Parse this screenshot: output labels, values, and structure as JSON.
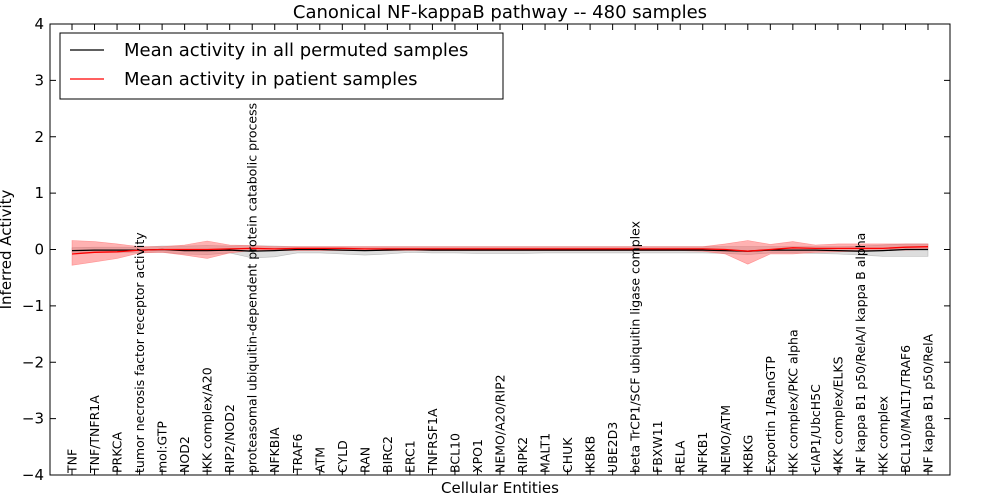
{
  "chart_data": {
    "type": "line",
    "title": "Canonical NF-kappaB pathway -- 480 samples",
    "xlabel": "Cellular Entities",
    "ylabel": "Inferred Activity",
    "ylim": [
      -4,
      4
    ],
    "yticks": [
      4,
      3,
      2,
      1,
      0,
      -1,
      -2,
      -3,
      -4
    ],
    "ytick_labels": [
      "4",
      "3",
      "2",
      "1",
      "0",
      "−1",
      "−2",
      "−3",
      "−4"
    ],
    "legend": {
      "placement": "top-left",
      "entries": [
        {
          "label": "Mean activity in all permuted samples",
          "color": "#000000"
        },
        {
          "label": "Mean activity in patient samples",
          "color": "#ff0000"
        }
      ]
    },
    "categories": [
      "TNF",
      "TNF/TNFR1A",
      "PRKCA",
      "tumor necrosis factor receptor activity",
      "mol:GTP",
      "NOD2",
      "IKK complex/A20",
      "RIP2/NOD2",
      "proteasomal ubiquitin-dependent protein catabolic process",
      "NFKBIA",
      "TRAF6",
      "ATM",
      "CYLD",
      "RAN",
      "BIRC2",
      "ERC1",
      "TNFRSF1A",
      "BCL10",
      "XPO1",
      "NEMO/A20/RIP2",
      "RIPK2",
      "MALT1",
      "CHUK",
      "IKBKB",
      "UBE2D3",
      "beta TrCP1/SCF ubiquitin ligase complex",
      "FBXW11",
      "RELA",
      "NFKB1",
      "NEMO/ATM",
      "IKBKG",
      "Exportin 1/RanGTP",
      "IKK complex/PKC alpha",
      "cIAP1/UbcH5C",
      "4KK complex/ELKS",
      "NF kappa B1 p50/RelA/I kappa B alpha",
      "IKK complex",
      "BCL10/MALT1/TRAF6",
      "NF kappa B1 p50/RelA"
    ],
    "series": [
      {
        "name": "Mean activity in all permuted samples",
        "color": "#000000",
        "values": [
          -0.02,
          -0.01,
          -0.01,
          -0.01,
          0.0,
          -0.02,
          -0.02,
          -0.01,
          -0.03,
          -0.02,
          0.0,
          0.0,
          -0.01,
          -0.02,
          -0.01,
          0.0,
          -0.01,
          -0.01,
          -0.01,
          -0.01,
          -0.01,
          -0.01,
          -0.01,
          -0.01,
          -0.01,
          -0.01,
          -0.01,
          -0.01,
          -0.01,
          -0.02,
          -0.03,
          -0.01,
          -0.01,
          -0.01,
          -0.02,
          -0.03,
          -0.02,
          0.0,
          0.0
        ],
        "band_lower": [
          -0.05,
          -0.05,
          -0.05,
          -0.05,
          -0.05,
          -0.08,
          -0.09,
          -0.06,
          -0.15,
          -0.13,
          -0.06,
          -0.06,
          -0.08,
          -0.1,
          -0.08,
          -0.05,
          -0.06,
          -0.06,
          -0.07,
          -0.07,
          -0.07,
          -0.06,
          -0.06,
          -0.06,
          -0.06,
          -0.06,
          -0.06,
          -0.06,
          -0.06,
          -0.07,
          -0.09,
          -0.06,
          -0.06,
          -0.07,
          -0.08,
          -0.1,
          -0.12,
          -0.12,
          -0.12
        ],
        "band_upper": [
          0.03,
          0.04,
          0.04,
          0.04,
          0.06,
          0.06,
          0.07,
          0.06,
          0.07,
          0.06,
          0.05,
          0.05,
          0.05,
          0.05,
          0.05,
          0.05,
          0.05,
          0.05,
          0.05,
          0.05,
          0.05,
          0.05,
          0.05,
          0.05,
          0.05,
          0.05,
          0.05,
          0.05,
          0.05,
          0.05,
          0.05,
          0.05,
          0.05,
          0.05,
          0.05,
          0.06,
          0.08,
          0.1,
          0.1
        ]
      },
      {
        "name": "Mean activity in patient samples",
        "color": "#ff0000",
        "values": [
          -0.08,
          -0.05,
          -0.04,
          -0.01,
          0.0,
          0.0,
          0.0,
          0.01,
          0.02,
          0.01,
          0.02,
          0.02,
          0.02,
          0.01,
          0.01,
          0.01,
          0.01,
          0.01,
          0.01,
          0.01,
          0.01,
          0.01,
          0.01,
          0.01,
          0.01,
          0.01,
          0.01,
          0.01,
          0.01,
          0.0,
          -0.03,
          0.0,
          0.03,
          0.02,
          0.02,
          0.02,
          0.02,
          0.04,
          0.05
        ],
        "band_lower": [
          -0.28,
          -0.22,
          -0.16,
          -0.06,
          -0.05,
          -0.1,
          -0.16,
          -0.06,
          -0.02,
          -0.02,
          -0.02,
          -0.02,
          -0.02,
          -0.02,
          -0.02,
          -0.02,
          -0.02,
          -0.02,
          -0.02,
          -0.02,
          -0.02,
          -0.02,
          -0.02,
          -0.02,
          -0.02,
          -0.02,
          -0.02,
          -0.02,
          -0.03,
          -0.08,
          -0.26,
          -0.08,
          -0.08,
          -0.05,
          -0.04,
          -0.03,
          -0.02,
          -0.01,
          0.0
        ],
        "band_upper": [
          0.16,
          0.14,
          0.1,
          0.05,
          0.05,
          0.08,
          0.15,
          0.08,
          0.07,
          0.05,
          0.05,
          0.05,
          0.05,
          0.05,
          0.05,
          0.05,
          0.05,
          0.05,
          0.05,
          0.05,
          0.05,
          0.05,
          0.05,
          0.05,
          0.05,
          0.05,
          0.05,
          0.05,
          0.05,
          0.1,
          0.16,
          0.09,
          0.14,
          0.08,
          0.1,
          0.1,
          0.1,
          0.1,
          0.1
        ]
      }
    ]
  }
}
